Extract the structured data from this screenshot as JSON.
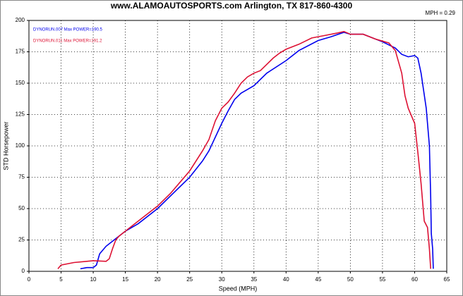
{
  "chart_data": {
    "type": "line",
    "title": "www.ALAMOAUTOSPORTS.com Arlington, TX 817-860-4300",
    "subtitle": "MPH = 0.29",
    "x_label": "Speed (MPH)",
    "y_label": "STD Horsepower",
    "xlim": [
      0,
      65
    ],
    "xticks": [
      0,
      5,
      10,
      15,
      20,
      25,
      30,
      35,
      40,
      45,
      50,
      55,
      60,
      65
    ],
    "ylim": [
      0,
      200
    ],
    "yticks": [
      0,
      25,
      50,
      75,
      100,
      125,
      150,
      175,
      200
    ],
    "grid": true,
    "legend": "top-left",
    "series": [
      {
        "name": "DYNORUN.007  Max POWER=190.5",
        "color": "#0000ee",
        "x": [
          8,
          9,
          10,
          10.5,
          11,
          12,
          13,
          15,
          17,
          20,
          22,
          25,
          27,
          28,
          30,
          31,
          32,
          33,
          35,
          37,
          40,
          42,
          45,
          47,
          49,
          50,
          52,
          55,
          57,
          58,
          59,
          60,
          60.5,
          61,
          61.8,
          62.3,
          62.5,
          62.6,
          62.8,
          62.9
        ],
        "values": [
          2,
          3,
          3,
          5,
          14,
          20,
          24,
          32,
          38,
          50,
          60,
          75,
          88,
          96,
          118,
          128,
          137,
          142,
          148,
          158,
          168,
          176,
          184,
          187,
          190.5,
          189,
          189,
          183,
          178,
          173,
          171,
          172,
          170,
          158,
          130,
          100,
          60,
          30,
          18,
          2
        ]
      },
      {
        "name": "DYNORUN.011  Max POWER=191.2",
        "color": "#dd1133",
        "x": [
          4.5,
          5,
          7,
          9,
          10,
          12,
          12.5,
          13,
          13.5,
          14,
          15,
          17,
          20,
          22,
          25,
          27,
          28,
          29,
          30,
          31,
          32,
          33,
          34,
          35,
          36,
          37,
          38,
          39,
          40,
          42,
          44,
          46,
          48,
          49,
          50,
          52,
          54,
          56,
          57,
          58,
          58.5,
          59,
          60,
          60.5,
          61,
          61.5,
          62,
          62.3,
          62.5
        ],
        "values": [
          2,
          5,
          7,
          8,
          8.5,
          8,
          10,
          18,
          25,
          28,
          32,
          40,
          52,
          62,
          80,
          96,
          105,
          120,
          130,
          135,
          142,
          150,
          155,
          158,
          160,
          165,
          170,
          174,
          177,
          181,
          186,
          188,
          190,
          191.2,
          189,
          189,
          185,
          182,
          176,
          158,
          140,
          130,
          118,
          95,
          70,
          40,
          35,
          18,
          2
        ]
      }
    ]
  }
}
